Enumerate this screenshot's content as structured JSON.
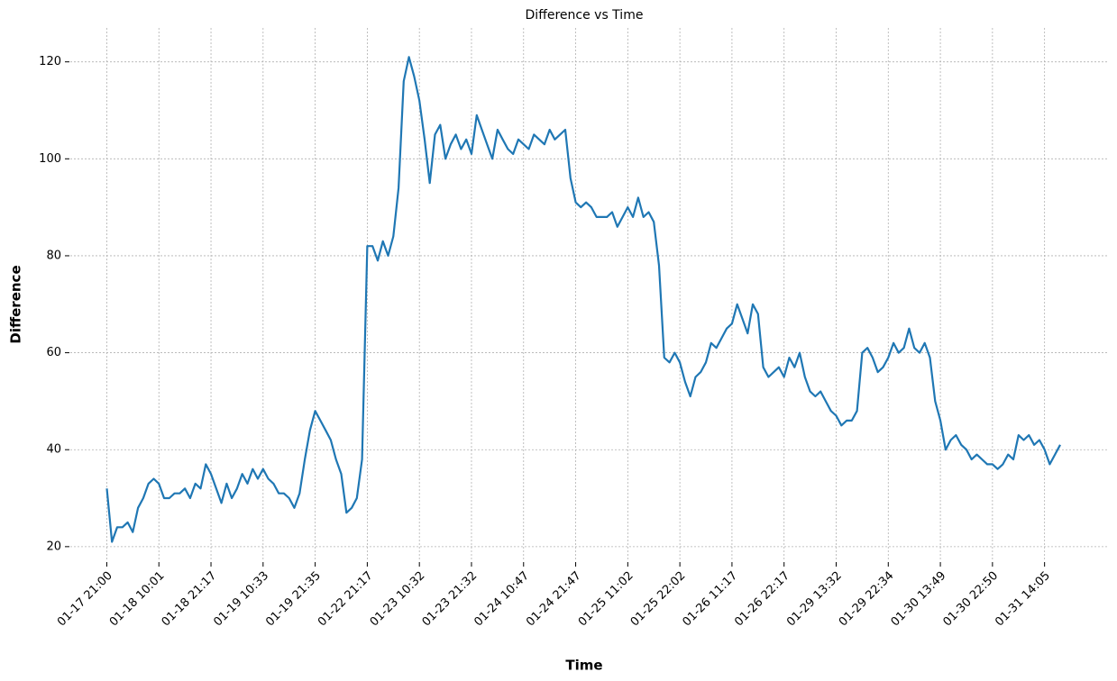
{
  "chart_data": {
    "type": "line",
    "title": "Difference vs Time",
    "x_label": "Time",
    "y_label": "Difference",
    "color": "#1f77b4",
    "grid": true,
    "xlim": [
      -70,
      1920
    ],
    "ylim": [
      17,
      127
    ],
    "xticks": [
      {
        "value": 0,
        "label": "01-17 21:00"
      },
      {
        "value": 100,
        "label": "01-18 10:01"
      },
      {
        "value": 200,
        "label": "01-18 21:17"
      },
      {
        "value": 300,
        "label": "01-19 10:33"
      },
      {
        "value": 400,
        "label": "01-19 21:35"
      },
      {
        "value": 500,
        "label": "01-22 21:17"
      },
      {
        "value": 600,
        "label": "01-23 10:32"
      },
      {
        "value": 700,
        "label": "01-23 21:32"
      },
      {
        "value": 800,
        "label": "01-24 10:47"
      },
      {
        "value": 900,
        "label": "01-24 21:47"
      },
      {
        "value": 1000,
        "label": "01-25 11:02"
      },
      {
        "value": 1100,
        "label": "01-25 22:02"
      },
      {
        "value": 1200,
        "label": "01-26 11:17"
      },
      {
        "value": 1300,
        "label": "01-26 22:17"
      },
      {
        "value": 1400,
        "label": "01-29 13:32"
      },
      {
        "value": 1500,
        "label": "01-29 22:34"
      },
      {
        "value": 1600,
        "label": "01-30 13:49"
      },
      {
        "value": 1700,
        "label": "01-30 22:50"
      },
      {
        "value": 1800,
        "label": "01-31 14:05"
      }
    ],
    "yticks": [
      20,
      40,
      60,
      80,
      100,
      120
    ],
    "x": [
      0,
      10,
      20,
      30,
      40,
      50,
      60,
      70,
      80,
      90,
      100,
      110,
      120,
      130,
      140,
      150,
      160,
      170,
      180,
      190,
      200,
      210,
      220,
      230,
      240,
      250,
      260,
      270,
      280,
      290,
      300,
      310,
      320,
      330,
      340,
      350,
      360,
      370,
      380,
      390,
      400,
      410,
      420,
      430,
      440,
      450,
      460,
      470,
      480,
      490,
      500,
      510,
      520,
      530,
      540,
      550,
      560,
      570,
      580,
      590,
      600,
      610,
      620,
      630,
      640,
      650,
      660,
      670,
      680,
      690,
      700,
      710,
      720,
      730,
      740,
      750,
      760,
      770,
      780,
      790,
      800,
      810,
      820,
      830,
      840,
      850,
      860,
      870,
      880,
      890,
      900,
      910,
      920,
      930,
      940,
      950,
      960,
      970,
      980,
      990,
      1000,
      1010,
      1020,
      1030,
      1040,
      1050,
      1060,
      1070,
      1080,
      1090,
      1100,
      1110,
      1120,
      1130,
      1140,
      1150,
      1160,
      1170,
      1180,
      1190,
      1200,
      1210,
      1220,
      1230,
      1240,
      1250,
      1260,
      1270,
      1280,
      1290,
      1300,
      1310,
      1320,
      1330,
      1340,
      1350,
      1360,
      1370,
      1380,
      1390,
      1400,
      1410,
      1420,
      1430,
      1440,
      1450,
      1460,
      1470,
      1480,
      1490,
      1500,
      1510,
      1520,
      1530,
      1540,
      1550,
      1560,
      1570,
      1580,
      1590,
      1600,
      1610,
      1620,
      1630,
      1640,
      1650,
      1660,
      1670,
      1680,
      1690,
      1700,
      1710,
      1720,
      1730,
      1740,
      1750,
      1760,
      1770,
      1780,
      1790,
      1800,
      1810,
      1820,
      1830
    ],
    "values": [
      32,
      21,
      24,
      24,
      25,
      23,
      28,
      30,
      33,
      34,
      33,
      30,
      30,
      31,
      31,
      32,
      30,
      33,
      32,
      37,
      35,
      32,
      29,
      33,
      30,
      32,
      35,
      33,
      36,
      34,
      36,
      34,
      33,
      31,
      31,
      30,
      28,
      31,
      38,
      44,
      48,
      46,
      44,
      42,
      38,
      35,
      27,
      28,
      30,
      38,
      82,
      82,
      79,
      83,
      80,
      84,
      94,
      116,
      121,
      117,
      112,
      104,
      95,
      105,
      107,
      100,
      103,
      105,
      102,
      104,
      101,
      109,
      106,
      103,
      100,
      106,
      104,
      102,
      101,
      104,
      103,
      102,
      105,
      104,
      103,
      106,
      104,
      105,
      106,
      96,
      91,
      90,
      91,
      90,
      88,
      88,
      88,
      89,
      86,
      88,
      90,
      88,
      92,
      88,
      89,
      87,
      78,
      59,
      58,
      60,
      58,
      54,
      51,
      55,
      56,
      58,
      62,
      61,
      63,
      65,
      66,
      70,
      67,
      64,
      70,
      68,
      57,
      55,
      56,
      57,
      55,
      59,
      57,
      60,
      55,
      52,
      51,
      52,
      50,
      48,
      47,
      45,
      46,
      46,
      48,
      60,
      61,
      59,
      56,
      57,
      59,
      62,
      60,
      61,
      65,
      61,
      60,
      62,
      59,
      50,
      46,
      40,
      42,
      43,
      41,
      40,
      38,
      39,
      38,
      37,
      37,
      36,
      37,
      39,
      38,
      43,
      42,
      43,
      41,
      42,
      40,
      37,
      39,
      41
    ]
  }
}
